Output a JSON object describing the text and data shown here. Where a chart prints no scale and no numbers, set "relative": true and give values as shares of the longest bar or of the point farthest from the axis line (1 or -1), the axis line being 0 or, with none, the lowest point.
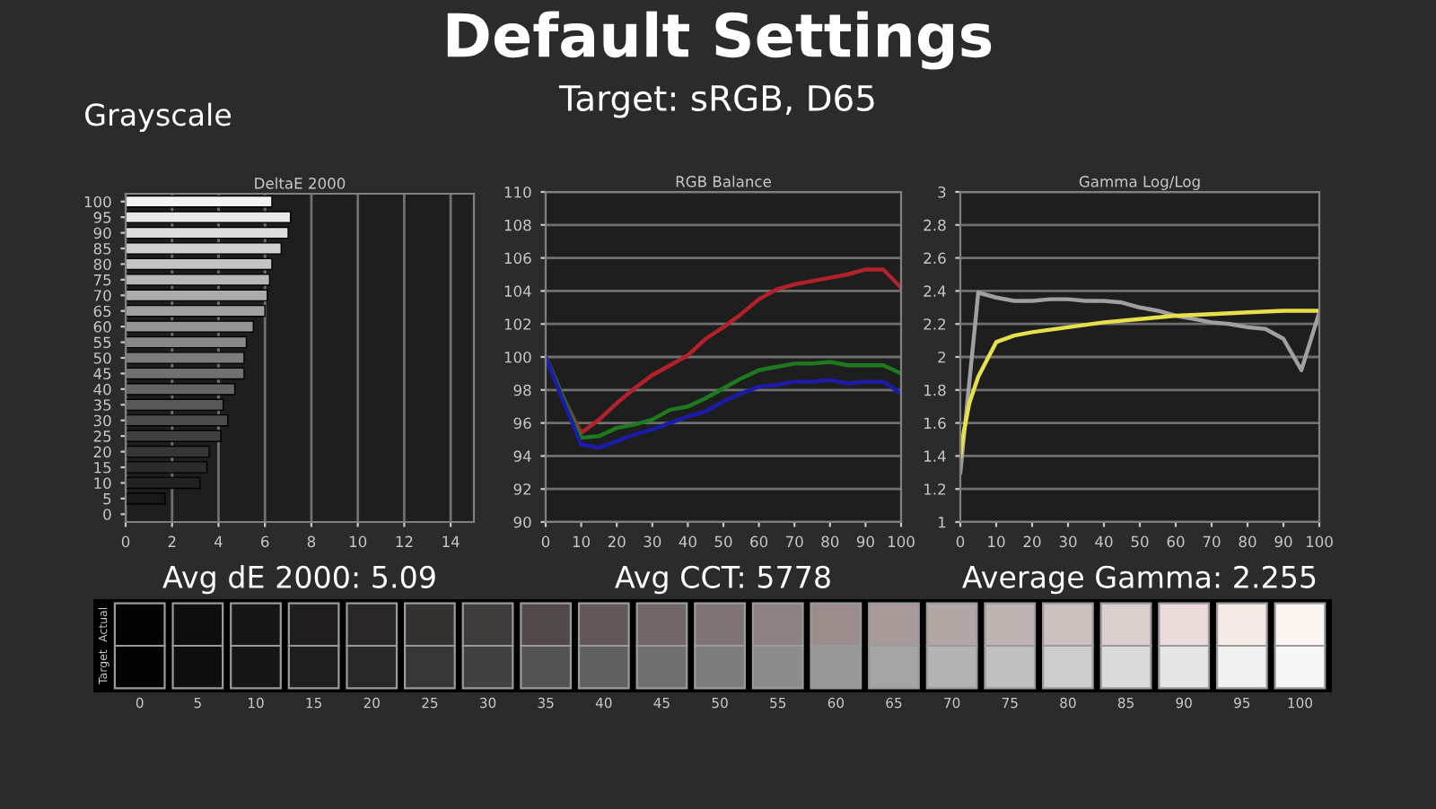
{
  "chart_data": [
    {
      "type": "bar",
      "orientation": "horizontal",
      "title": "DeltaE 2000",
      "xlabel": "Avg dE 2000: 5.09",
      "annotations": [
        "Default Settings",
        "Target: sRGB, D65",
        "Grayscale"
      ],
      "categories": [
        "100",
        "95",
        "90",
        "85",
        "80",
        "75",
        "70",
        "65",
        "60",
        "55",
        "50",
        "45",
        "40",
        "35",
        "30",
        "25",
        "20",
        "15",
        "10",
        "5",
        "0"
      ],
      "values": [
        6.3,
        7.1,
        7.0,
        6.7,
        6.3,
        6.2,
        6.1,
        6.0,
        5.5,
        5.2,
        5.1,
        5.1,
        4.7,
        4.2,
        4.4,
        4.1,
        3.6,
        3.5,
        3.2,
        1.7,
        0
      ],
      "colors": [
        "#f4f4f4",
        "#e8e8e8",
        "#dcdcdc",
        "#d0d0d0",
        "#c4c4c4",
        "#b8b8b8",
        "#acacac",
        "#a0a0a0",
        "#949494",
        "#888888",
        "#7c7c7c",
        "#707070",
        "#646464",
        "#585858",
        "#4c4c4c",
        "#404040",
        "#363636",
        "#2c2c2c",
        "#222222",
        "#181818",
        "#101010"
      ],
      "xlim": [
        0,
        15
      ],
      "xticks": [
        0,
        2,
        4,
        6,
        8,
        10,
        12,
        14
      ],
      "grid": "x"
    },
    {
      "type": "line",
      "title": "RGB Balance",
      "xlabel": "Avg CCT: 5778",
      "x": [
        0,
        5,
        10,
        15,
        20,
        25,
        30,
        35,
        40,
        45,
        50,
        55,
        60,
        65,
        70,
        75,
        80,
        85,
        90,
        95,
        100
      ],
      "series": [
        {
          "color": "#b3222b",
          "values": [
            100,
            97.5,
            95.4,
            96.2,
            97.2,
            98.1,
            98.9,
            99.5,
            100.1,
            101.1,
            101.8,
            102.6,
            103.5,
            104.1,
            104.4,
            104.6,
            104.8,
            105.0,
            105.3,
            105.3,
            104.2
          ]
        },
        {
          "color": "#1f7a1f",
          "values": [
            100,
            97.5,
            95.1,
            95.2,
            95.7,
            95.9,
            96.2,
            96.8,
            97.0,
            97.5,
            98.1,
            98.7,
            99.2,
            99.4,
            99.6,
            99.6,
            99.7,
            99.5,
            99.5,
            99.5,
            99.0
          ]
        },
        {
          "color": "#1c1caa",
          "values": [
            100,
            97.3,
            94.7,
            94.5,
            94.9,
            95.3,
            95.6,
            96.0,
            96.4,
            96.7,
            97.3,
            97.8,
            98.2,
            98.3,
            98.5,
            98.5,
            98.6,
            98.4,
            98.5,
            98.5,
            97.8
          ]
        }
      ],
      "xlim": [
        0,
        100
      ],
      "xticks": [
        0,
        10,
        20,
        30,
        40,
        50,
        60,
        70,
        80,
        90,
        100
      ],
      "ylim": [
        90,
        110
      ],
      "yticks": [
        90,
        92,
        94,
        96,
        98,
        100,
        102,
        104,
        106,
        108,
        110
      ],
      "grid": "y"
    },
    {
      "type": "line",
      "title": "Gamma Log/Log",
      "xlabel": "Average Gamma: 2.255",
      "series": [
        {
          "color": "#a0a0a0",
          "x": [
            0,
            5,
            10,
            15,
            20,
            25,
            30,
            35,
            40,
            45,
            50,
            55,
            60,
            65,
            70,
            75,
            80,
            85,
            90,
            95,
            100
          ],
          "values": [
            1.3,
            2.39,
            2.36,
            2.34,
            2.34,
            2.35,
            2.35,
            2.34,
            2.34,
            2.33,
            2.3,
            2.28,
            2.25,
            2.23,
            2.21,
            2.2,
            2.18,
            2.17,
            2.11,
            1.92,
            2.27
          ]
        },
        {
          "color": "#e8e04a",
          "x": [
            0,
            1,
            2.5,
            5,
            10,
            15,
            20,
            30,
            40,
            50,
            60,
            70,
            80,
            90,
            100
          ],
          "values": [
            1.4,
            1.55,
            1.72,
            1.88,
            2.09,
            2.13,
            2.15,
            2.18,
            2.21,
            2.23,
            2.25,
            2.26,
            2.27,
            2.28,
            2.28
          ]
        }
      ],
      "xlim": [
        0,
        100
      ],
      "xticks": [
        0,
        10,
        20,
        30,
        40,
        50,
        60,
        70,
        80,
        90,
        100
      ],
      "ylim": [
        1,
        3
      ],
      "yticks": [
        1,
        {
          "value": 1.2,
          "label": "1.2"
        },
        {
          "value": 1.4,
          "label": "1.4"
        },
        {
          "value": 1.6,
          "label": "1.6"
        },
        {
          "value": 1.8,
          "label": "1.8"
        },
        2,
        {
          "value": 2.2,
          "label": "2.2"
        },
        {
          "value": 2.4,
          "label": "2.4"
        },
        {
          "value": 2.6,
          "label": "2.6"
        },
        {
          "value": 2.8,
          "label": "2.8"
        },
        3
      ],
      "grid": "y"
    },
    {
      "type": "bar",
      "stacked": true,
      "relative": true,
      "categories": [
        "0",
        "5",
        "10",
        "15",
        "20",
        "25",
        "30",
        "35",
        "40",
        "45",
        "50",
        "55",
        "60",
        "65",
        "70",
        "75",
        "80",
        "85",
        "90",
        "95",
        "100"
      ],
      "series": [
        {
          "name": "Target",
          "values": [
            0.5,
            0.5,
            0.5,
            0.5,
            0.5,
            0.5,
            0.5,
            0.5,
            0.5,
            0.5,
            0.5,
            0.5,
            0.5,
            0.5,
            0.5,
            0.5,
            0.5,
            0.5,
            0.5,
            0.5,
            0.5
          ],
          "colors": [
            "#030303",
            "#0e0e0e",
            "#161616",
            "#1e1e1e",
            "#282828",
            "#363636",
            "#414141",
            "#535353",
            "#616161",
            "#707070",
            "#7d7d7d",
            "#8b8b8b",
            "#989898",
            "#a5a5a5",
            "#b3b3b3",
            "#c0c0c0",
            "#cdcdcd",
            "#dadada",
            "#e6e6e6",
            "#f0f0f0",
            "#f6f6f6"
          ]
        },
        {
          "name": "Actual",
          "values": [
            0.5,
            0.5,
            0.5,
            0.5,
            0.5,
            0.5,
            0.5,
            0.5,
            0.5,
            0.5,
            0.5,
            0.5,
            0.5,
            0.5,
            0.5,
            0.5,
            0.5,
            0.5,
            0.5,
            0.5,
            0.5
          ],
          "colors": [
            "#030303",
            "#0f0e0e",
            "#171616",
            "#1f1d1d",
            "#282626",
            "#353131",
            "#403b3b",
            "#524a4a",
            "#625858",
            "#726767",
            "#7f7474",
            "#8d8181",
            "#9a8d8c",
            "#a79a99",
            "#b3a7a6",
            "#c0b4b3",
            "#cdc1c0",
            "#dbcfce",
            "#e9dcdb",
            "#f5ebe6",
            "#fdf5f2"
          ]
        }
      ]
    }
  ]
}
